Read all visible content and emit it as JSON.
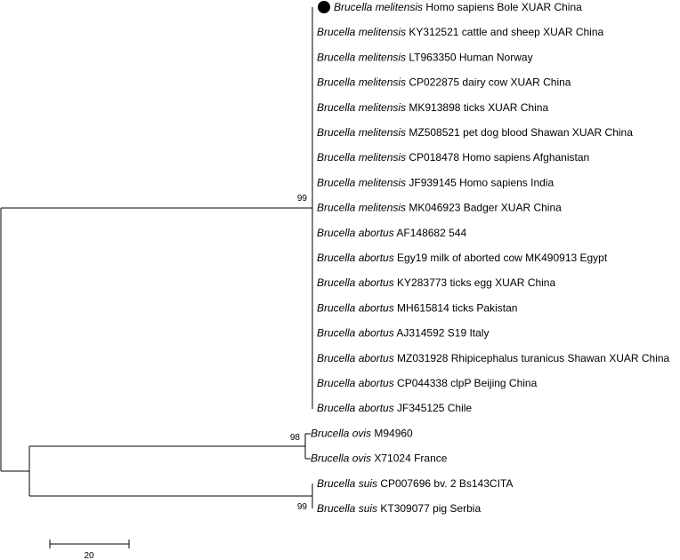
{
  "tree": {
    "leaves": [
      {
        "species": "Brucella melitensis",
        "info": "Homo sapiens Bole XUAR China",
        "marked": true
      },
      {
        "species": "Brucella melitensis",
        "info": "KY312521 cattle and sheep XUAR China"
      },
      {
        "species": "Brucella melitensis",
        "info": "LT963350 Human Norway"
      },
      {
        "species": "Brucella melitensis",
        "info": "CP022875 dairy cow XUAR China"
      },
      {
        "species": "Brucella melitensis",
        "info": "MK913898 ticks XUAR China"
      },
      {
        "species": "Brucella melitensis",
        "info": "MZ508521 pet dog blood Shawan XUAR China"
      },
      {
        "species": "Brucella melitensis",
        "info": "CP018478 Homo sapiens Afghanistan"
      },
      {
        "species": "Brucella melitensis",
        "info": "JF939145 Homo sapiens India"
      },
      {
        "species": "Brucella melitensis",
        "info": "MK046923 Badger XUAR China"
      },
      {
        "species": "Brucella abortus",
        "info": "AF148682 544"
      },
      {
        "species": "Brucella abortus",
        "info": "Egy19 milk of aborted cow MK490913 Egypt"
      },
      {
        "species": "Brucella abortus",
        "info": "KY283773 ticks egg XUAR China"
      },
      {
        "species": "Brucella abortus",
        "info": "MH615814 ticks Pakistan"
      },
      {
        "species": "Brucella abortus",
        "info": "AJ314592 S19 Italy"
      },
      {
        "species": "Brucella abortus",
        "info": "MZ031928 Rhipicephalus turanicus Shawan XUAR China"
      },
      {
        "species": "Brucella abortus",
        "info": "CP044338 clpP Beijing China"
      },
      {
        "species": "Brucella abortus",
        "info": "JF345125 Chile"
      },
      {
        "species": "Brucella ovis",
        "info": "M94960"
      },
      {
        "species": "Brucella ovis",
        "info": "X71024 France"
      },
      {
        "species": "Brucella suis",
        "info": "CP007696 bv. 2 Bs143CITA"
      },
      {
        "species": "Brucella suis",
        "info": "KT309077 pig Serbia"
      }
    ],
    "bootstrap_values": {
      "melitensis_abortus_clade": "99",
      "ovis_clade": "98",
      "suis_clade": "99"
    },
    "scale_bar": {
      "label": "20"
    }
  }
}
